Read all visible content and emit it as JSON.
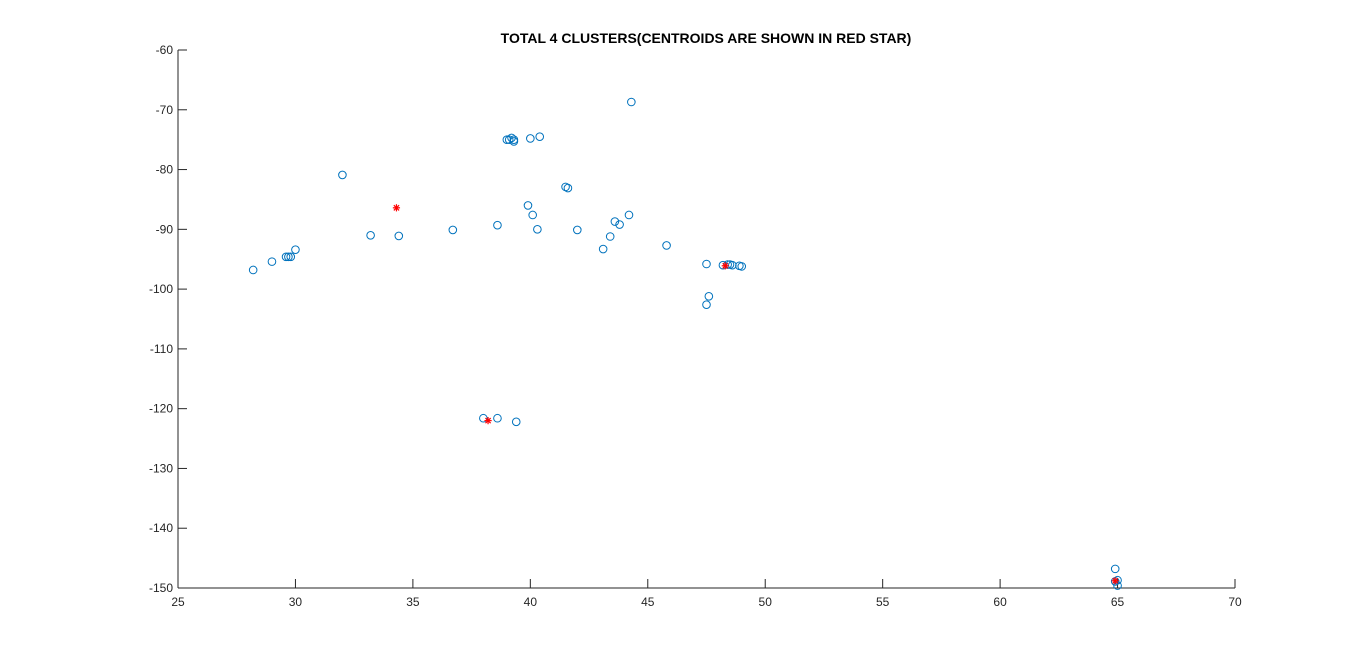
{
  "chart_data": {
    "type": "scatter",
    "title": "TOTAL 4 CLUSTERS(CENTROIDS ARE SHOWN IN RED STAR)",
    "xlabel": "",
    "ylabel": "",
    "xlim": [
      25,
      70
    ],
    "ylim": [
      -150,
      -60
    ],
    "xticks": [
      25,
      30,
      35,
      40,
      45,
      50,
      55,
      60,
      65,
      70
    ],
    "yticks": [
      -60,
      -70,
      -80,
      -90,
      -100,
      -110,
      -120,
      -130,
      -140,
      -150
    ],
    "grid": false,
    "colors": {
      "points": "#0072BD",
      "centroids": "#FF0000",
      "axis": "#262626"
    },
    "series": [
      {
        "marker": "circle",
        "points": [
          [
            28.2,
            -96.8
          ],
          [
            29.0,
            -95.4
          ],
          [
            29.6,
            -94.6
          ],
          [
            29.8,
            -94.6
          ],
          [
            29.7,
            -94.6
          ],
          [
            30.0,
            -93.4
          ],
          [
            32.0,
            -80.9
          ],
          [
            33.2,
            -91.0
          ],
          [
            34.4,
            -91.1
          ],
          [
            36.7,
            -90.1
          ],
          [
            38.6,
            -89.3
          ],
          [
            39.0,
            -75.0
          ],
          [
            39.1,
            -75.0
          ],
          [
            39.2,
            -74.7
          ],
          [
            39.3,
            -75.0
          ],
          [
            39.3,
            -75.3
          ],
          [
            40.0,
            -74.8
          ],
          [
            40.4,
            -74.5
          ],
          [
            44.3,
            -68.7
          ],
          [
            39.9,
            -86.0
          ],
          [
            40.1,
            -87.6
          ],
          [
            40.3,
            -90.0
          ],
          [
            41.5,
            -82.9
          ],
          [
            41.6,
            -83.1
          ],
          [
            42.0,
            -90.1
          ],
          [
            43.1,
            -93.3
          ],
          [
            43.4,
            -91.2
          ],
          [
            43.6,
            -88.7
          ],
          [
            43.8,
            -89.2
          ],
          [
            44.2,
            -87.6
          ],
          [
            45.8,
            -92.7
          ],
          [
            47.5,
            -95.8
          ],
          [
            47.5,
            -102.6
          ],
          [
            47.6,
            -101.2
          ],
          [
            48.2,
            -96.0
          ],
          [
            48.4,
            -95.9
          ],
          [
            48.5,
            -95.9
          ],
          [
            48.6,
            -96.0
          ],
          [
            48.9,
            -96.1
          ],
          [
            49.0,
            -96.2
          ],
          [
            38.0,
            -121.6
          ],
          [
            38.6,
            -121.6
          ],
          [
            39.4,
            -122.2
          ],
          [
            64.9,
            -146.8
          ],
          [
            64.9,
            -148.9
          ],
          [
            65.0,
            -148.7
          ],
          [
            65.0,
            -149.6
          ]
        ]
      },
      {
        "marker": "star",
        "points": [
          [
            34.3,
            -86.4
          ],
          [
            48.3,
            -96.1
          ],
          [
            38.2,
            -122.0
          ],
          [
            64.9,
            -148.8
          ]
        ]
      }
    ]
  }
}
